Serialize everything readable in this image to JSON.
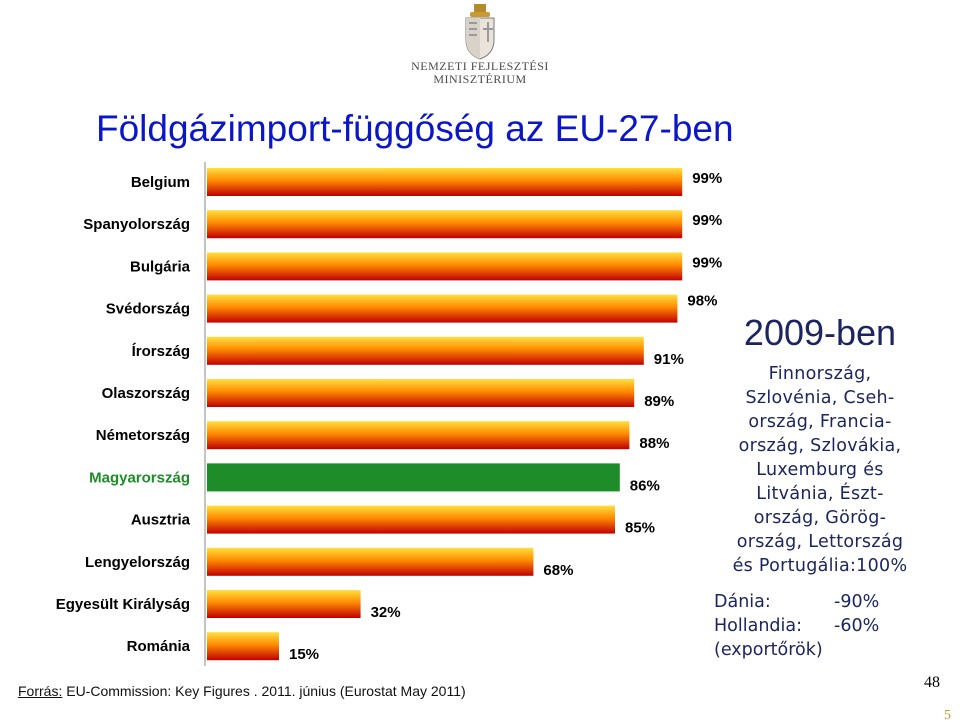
{
  "header": {
    "logo_line1": "NEMZETI FEJLESZTÉSI",
    "logo_line2": "MINISZTÉRIUM",
    "title": "Földgázimport-függőség az EU-27-ben"
  },
  "chart_data": {
    "type": "bar",
    "orientation": "horizontal",
    "categories": [
      "Belgium",
      "Spanyolország",
      "Bulgária",
      "Svédország",
      "Írország",
      "Olaszország",
      "Németország",
      "Magyarország",
      "Ausztria",
      "Lengyelország",
      "Egyesült Királyság",
      "Románia"
    ],
    "values": [
      99,
      99,
      99,
      98,
      91,
      89,
      88,
      86,
      85,
      68,
      32,
      15
    ],
    "value_labels": [
      "99%",
      "99%",
      "99%",
      "98%",
      "91%",
      "89%",
      "88%",
      "86%",
      "85%",
      "68%",
      "32%",
      "15%"
    ],
    "highlight": "Magyarország",
    "colors": {
      "bar_top": "#ffd200",
      "bar_bottom": "#c00000",
      "highlight": "#1e8c28",
      "highlight_label": "#1e8c28"
    },
    "xlim": [
      0,
      100
    ],
    "grid": false
  },
  "info": {
    "title": "2009-ben",
    "lines": [
      "Finnország,",
      "Szlovénia, Cseh-",
      "ország, Francia-",
      "ország, Szlovákia,",
      "Luxemburg és",
      "Litvánia, Észt-",
      "ország, Görög-",
      "ország, Lettország",
      "és Portugália:100%"
    ]
  },
  "exporters": {
    "rows": [
      {
        "name": "Dánia:",
        "value": "-90%"
      },
      {
        "name": "Hollandia:",
        "value": "-60%"
      }
    ],
    "note": "(exportőrök)"
  },
  "source": {
    "label": "Forrás:",
    "text": "EU-Commission: Key Figures . 2011. június (Eurostat May 2011)"
  },
  "page": {
    "number_a": "48",
    "number_b": "5"
  }
}
